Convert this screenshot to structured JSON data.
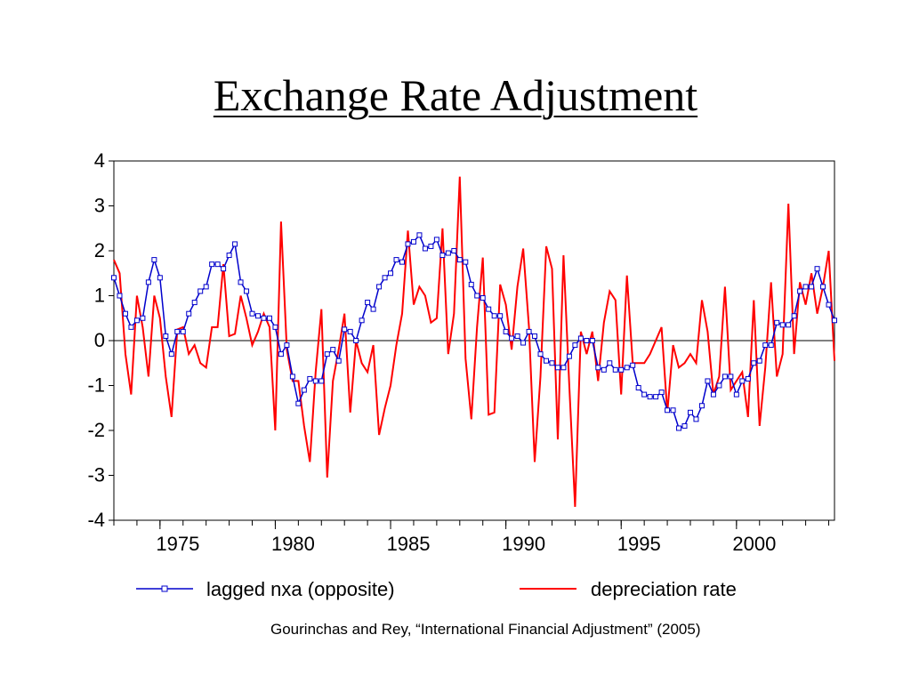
{
  "title": "Exchange Rate Adjustment",
  "citation": "Gourinchas and Rey, “International Financial Adjustment” (2005)",
  "chart_data": {
    "type": "line",
    "title": "",
    "xlabel": "",
    "ylabel": "",
    "xlim": [
      1973,
      2004.25
    ],
    "ylim": [
      -4,
      4
    ],
    "y_ticks": [
      4,
      3,
      2,
      1,
      0,
      -1,
      -2,
      -3,
      -4
    ],
    "x_tick_labels": [
      "1975",
      "1980",
      "1985",
      "1990",
      "1995",
      "2000"
    ],
    "x_ticks": [
      1975,
      1980,
      1985,
      1990,
      1995,
      2000
    ],
    "zero_line": true,
    "grid": false,
    "legend_position": "bottom",
    "series": [
      {
        "name": "lagged nxa (opposite)",
        "color": "#0000cc",
        "marker": "square-open",
        "points": [
          [
            1973.0,
            1.4
          ],
          [
            1973.25,
            1.0
          ],
          [
            1973.5,
            0.6
          ],
          [
            1973.75,
            0.3
          ],
          [
            1974.0,
            0.45
          ],
          [
            1974.25,
            0.5
          ],
          [
            1974.5,
            1.3
          ],
          [
            1974.75,
            1.8
          ],
          [
            1975.0,
            1.4
          ],
          [
            1975.25,
            0.1
          ],
          [
            1975.5,
            -0.3
          ],
          [
            1975.75,
            0.2
          ],
          [
            1976.0,
            0.2
          ],
          [
            1976.25,
            0.6
          ],
          [
            1976.5,
            0.85
          ],
          [
            1976.75,
            1.1
          ],
          [
            1977.0,
            1.2
          ],
          [
            1977.25,
            1.7
          ],
          [
            1977.5,
            1.7
          ],
          [
            1977.75,
            1.6
          ],
          [
            1978.0,
            1.9
          ],
          [
            1978.25,
            2.15
          ],
          [
            1978.5,
            1.3
          ],
          [
            1978.75,
            1.1
          ],
          [
            1979.0,
            0.6
          ],
          [
            1979.25,
            0.55
          ],
          [
            1979.5,
            0.5
          ],
          [
            1979.75,
            0.5
          ],
          [
            1980.0,
            0.3
          ],
          [
            1980.25,
            -0.3
          ],
          [
            1980.5,
            -0.1
          ],
          [
            1980.75,
            -0.8
          ],
          [
            1981.0,
            -1.4
          ],
          [
            1981.25,
            -1.1
          ],
          [
            1981.5,
            -0.85
          ],
          [
            1981.75,
            -0.9
          ],
          [
            1982.0,
            -0.9
          ],
          [
            1982.25,
            -0.3
          ],
          [
            1982.5,
            -0.2
          ],
          [
            1982.75,
            -0.45
          ],
          [
            1983.0,
            0.25
          ],
          [
            1983.25,
            0.2
          ],
          [
            1983.5,
            0.0
          ],
          [
            1983.75,
            0.45
          ],
          [
            1984.0,
            0.85
          ],
          [
            1984.25,
            0.7
          ],
          [
            1984.5,
            1.2
          ],
          [
            1984.75,
            1.4
          ],
          [
            1985.0,
            1.5
          ],
          [
            1985.25,
            1.8
          ],
          [
            1985.5,
            1.75
          ],
          [
            1985.75,
            2.15
          ],
          [
            1986.0,
            2.2
          ],
          [
            1986.25,
            2.35
          ],
          [
            1986.5,
            2.05
          ],
          [
            1986.75,
            2.1
          ],
          [
            1987.0,
            2.25
          ],
          [
            1987.25,
            1.9
          ],
          [
            1987.5,
            1.95
          ],
          [
            1987.75,
            2.0
          ],
          [
            1988.0,
            1.8
          ],
          [
            1988.25,
            1.75
          ],
          [
            1988.5,
            1.25
          ],
          [
            1988.75,
            1.0
          ],
          [
            1989.0,
            0.95
          ],
          [
            1989.25,
            0.7
          ],
          [
            1989.5,
            0.55
          ],
          [
            1989.75,
            0.55
          ],
          [
            1990.0,
            0.2
          ],
          [
            1990.25,
            0.05
          ],
          [
            1990.5,
            0.1
          ],
          [
            1990.75,
            -0.05
          ],
          [
            1991.0,
            0.2
          ],
          [
            1991.25,
            0.1
          ],
          [
            1991.5,
            -0.3
          ],
          [
            1991.75,
            -0.45
          ],
          [
            1992.0,
            -0.5
          ],
          [
            1992.25,
            -0.6
          ],
          [
            1992.5,
            -0.6
          ],
          [
            1992.75,
            -0.35
          ],
          [
            1993.0,
            -0.1
          ],
          [
            1993.25,
            0.05
          ],
          [
            1993.5,
            0.0
          ],
          [
            1993.75,
            0.0
          ],
          [
            1994.0,
            -0.6
          ],
          [
            1994.25,
            -0.65
          ],
          [
            1994.5,
            -0.5
          ],
          [
            1994.75,
            -0.65
          ],
          [
            1995.0,
            -0.65
          ],
          [
            1995.25,
            -0.6
          ],
          [
            1995.5,
            -0.55
          ],
          [
            1995.75,
            -1.05
          ],
          [
            1996.0,
            -1.2
          ],
          [
            1996.25,
            -1.25
          ],
          [
            1996.5,
            -1.25
          ],
          [
            1996.75,
            -1.15
          ],
          [
            1997.0,
            -1.55
          ],
          [
            1997.25,
            -1.55
          ],
          [
            1997.5,
            -1.95
          ],
          [
            1997.75,
            -1.9
          ],
          [
            1998.0,
            -1.6
          ],
          [
            1998.25,
            -1.75
          ],
          [
            1998.5,
            -1.45
          ],
          [
            1998.75,
            -0.9
          ],
          [
            1999.0,
            -1.2
          ],
          [
            1999.25,
            -1.0
          ],
          [
            1999.5,
            -0.8
          ],
          [
            1999.75,
            -0.8
          ],
          [
            2000.0,
            -1.2
          ],
          [
            2000.25,
            -0.9
          ],
          [
            2000.5,
            -0.85
          ],
          [
            2000.75,
            -0.5
          ],
          [
            2001.0,
            -0.45
          ],
          [
            2001.25,
            -0.1
          ],
          [
            2001.5,
            -0.1
          ],
          [
            2001.75,
            0.4
          ],
          [
            2002.0,
            0.35
          ],
          [
            2002.25,
            0.35
          ],
          [
            2002.5,
            0.55
          ],
          [
            2002.75,
            1.1
          ],
          [
            2003.0,
            1.2
          ],
          [
            2003.25,
            1.2
          ],
          [
            2003.5,
            1.6
          ],
          [
            2003.75,
            1.2
          ],
          [
            2004.0,
            0.8
          ],
          [
            2004.25,
            0.45
          ]
        ]
      },
      {
        "name": "depreciation rate",
        "color": "#ff0000",
        "points": [
          [
            1973.0,
            1.8
          ],
          [
            1973.25,
            1.5
          ],
          [
            1973.5,
            -0.3
          ],
          [
            1973.75,
            -1.2
          ],
          [
            1974.0,
            1.0
          ],
          [
            1974.25,
            0.3
          ],
          [
            1974.5,
            -0.8
          ],
          [
            1974.75,
            1.0
          ],
          [
            1975.0,
            0.5
          ],
          [
            1975.25,
            -0.8
          ],
          [
            1975.5,
            -1.7
          ],
          [
            1975.75,
            0.25
          ],
          [
            1976.0,
            0.3
          ],
          [
            1976.25,
            -0.3
          ],
          [
            1976.5,
            -0.1
          ],
          [
            1976.75,
            -0.5
          ],
          [
            1977.0,
            -0.6
          ],
          [
            1977.25,
            0.3
          ],
          [
            1977.5,
            0.3
          ],
          [
            1977.75,
            1.7
          ],
          [
            1978.0,
            0.1
          ],
          [
            1978.25,
            0.15
          ],
          [
            1978.5,
            1.0
          ],
          [
            1978.75,
            0.5
          ],
          [
            1979.0,
            -0.1
          ],
          [
            1979.25,
            0.2
          ],
          [
            1979.5,
            0.6
          ],
          [
            1979.75,
            0.3
          ],
          [
            1980.0,
            -2.0
          ],
          [
            1980.25,
            2.65
          ],
          [
            1980.5,
            -0.2
          ],
          [
            1980.75,
            -0.9
          ],
          [
            1981.0,
            -0.9
          ],
          [
            1981.25,
            -1.9
          ],
          [
            1981.5,
            -2.7
          ],
          [
            1981.75,
            -0.7
          ],
          [
            1982.0,
            0.7
          ],
          [
            1982.25,
            -3.05
          ],
          [
            1982.5,
            -0.9
          ],
          [
            1982.75,
            -0.2
          ],
          [
            1983.0,
            0.6
          ],
          [
            1983.25,
            -1.6
          ],
          [
            1983.5,
            0.0
          ],
          [
            1983.75,
            -0.5
          ],
          [
            1984.0,
            -0.7
          ],
          [
            1984.25,
            -0.1
          ],
          [
            1984.5,
            -2.1
          ],
          [
            1984.75,
            -1.5
          ],
          [
            1985.0,
            -1.0
          ],
          [
            1985.25,
            -0.1
          ],
          [
            1985.5,
            0.6
          ],
          [
            1985.75,
            2.45
          ],
          [
            1986.0,
            0.8
          ],
          [
            1986.25,
            1.2
          ],
          [
            1986.5,
            1.0
          ],
          [
            1986.75,
            0.4
          ],
          [
            1987.0,
            0.5
          ],
          [
            1987.25,
            2.5
          ],
          [
            1987.5,
            -0.3
          ],
          [
            1987.75,
            0.6
          ],
          [
            1988.0,
            3.65
          ],
          [
            1988.25,
            -0.4
          ],
          [
            1988.5,
            -1.75
          ],
          [
            1988.75,
            0.3
          ],
          [
            1989.0,
            1.85
          ],
          [
            1989.25,
            -1.65
          ],
          [
            1989.5,
            -1.6
          ],
          [
            1989.75,
            1.25
          ],
          [
            1990.0,
            0.8
          ],
          [
            1990.25,
            -0.2
          ],
          [
            1990.5,
            1.2
          ],
          [
            1990.75,
            2.05
          ],
          [
            1991.0,
            0.3
          ],
          [
            1991.25,
            -2.7
          ],
          [
            1991.5,
            -0.8
          ],
          [
            1991.75,
            2.1
          ],
          [
            1992.0,
            1.6
          ],
          [
            1992.25,
            -2.2
          ],
          [
            1992.5,
            1.9
          ],
          [
            1992.75,
            -1.0
          ],
          [
            1993.0,
            -3.7
          ],
          [
            1993.25,
            0.2
          ],
          [
            1993.5,
            -0.3
          ],
          [
            1993.75,
            0.2
          ],
          [
            1994.0,
            -0.9
          ],
          [
            1994.25,
            0.4
          ],
          [
            1994.5,
            1.1
          ],
          [
            1994.75,
            0.9
          ],
          [
            1995.0,
            -1.2
          ],
          [
            1995.25,
            1.45
          ],
          [
            1995.5,
            -0.5
          ],
          [
            1995.75,
            -0.5
          ],
          [
            1996.0,
            -0.5
          ],
          [
            1996.25,
            -0.3
          ],
          [
            1996.5,
            0.0
          ],
          [
            1996.75,
            0.3
          ],
          [
            1997.0,
            -1.6
          ],
          [
            1997.25,
            -0.1
          ],
          [
            1997.5,
            -0.6
          ],
          [
            1997.75,
            -0.5
          ],
          [
            1998.0,
            -0.3
          ],
          [
            1998.25,
            -0.5
          ],
          [
            1998.5,
            0.9
          ],
          [
            1998.75,
            0.2
          ],
          [
            1999.0,
            -1.2
          ],
          [
            1999.25,
            -0.8
          ],
          [
            1999.5,
            1.2
          ],
          [
            1999.75,
            -1.1
          ],
          [
            2000.0,
            -0.9
          ],
          [
            2000.25,
            -0.7
          ],
          [
            2000.5,
            -1.7
          ],
          [
            2000.75,
            0.9
          ],
          [
            2001.0,
            -1.9
          ],
          [
            2001.25,
            -0.6
          ],
          [
            2001.5,
            1.3
          ],
          [
            2001.75,
            -0.8
          ],
          [
            2002.0,
            -0.3
          ],
          [
            2002.25,
            3.05
          ],
          [
            2002.5,
            -0.3
          ],
          [
            2002.75,
            1.3
          ],
          [
            2003.0,
            0.8
          ],
          [
            2003.25,
            1.5
          ],
          [
            2003.5,
            0.6
          ],
          [
            2003.75,
            1.2
          ],
          [
            2004.0,
            2.0
          ],
          [
            2004.25,
            -0.45
          ]
        ]
      }
    ]
  }
}
